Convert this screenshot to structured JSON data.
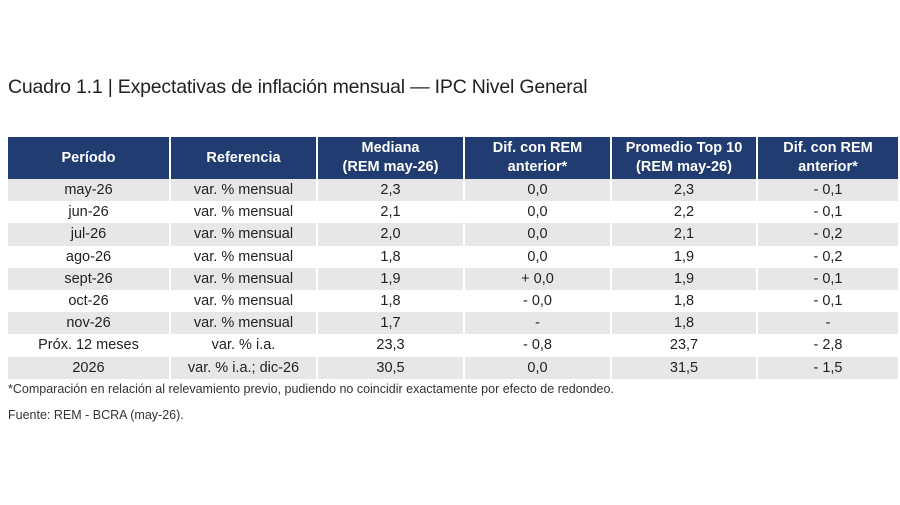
{
  "title": "Cuadro 1.1 | Expectativas de inflación mensual — IPC Nivel General",
  "columns": [
    "Período",
    "Referencia",
    "Mediana\n(REM may-26)",
    "Dif. con REM\nanterior*",
    "Promedio Top 10\n(REM may-26)",
    "Dif. con REM\nanterior*"
  ],
  "rows": [
    [
      "may-26",
      "var. % mensual",
      "2,3",
      "0,0",
      "2,3",
      "- 0,1"
    ],
    [
      "jun-26",
      "var. % mensual",
      "2,1",
      "0,0",
      "2,2",
      "- 0,1"
    ],
    [
      "jul-26",
      "var. % mensual",
      "2,0",
      "0,0",
      "2,1",
      "- 0,2"
    ],
    [
      "ago-26",
      "var. % mensual",
      "1,8",
      "0,0",
      "1,9",
      "- 0,2"
    ],
    [
      "sept-26",
      "var. % mensual",
      "1,9",
      "+ 0,0",
      "1,9",
      "- 0,1"
    ],
    [
      "oct-26",
      "var. % mensual",
      "1,8",
      "- 0,0",
      "1,8",
      "- 0,1"
    ],
    [
      "nov-26",
      "var. % mensual",
      "1,7",
      "-",
      "1,8",
      "-"
    ],
    [
      "Próx. 12 meses",
      "var. % i.a.",
      "23,3",
      "- 0,8",
      "23,7",
      "- 2,8"
    ],
    [
      "2026",
      "var. % i.a.; dic-26",
      "30,5",
      "0,0",
      "31,5",
      "- 1,5"
    ]
  ],
  "footnote": "*Comparación en relación al relevamiento previo, pudiendo no coincidir exactamente por efecto de redondeo.",
  "source": "Fuente: REM - BCRA (may-26).",
  "colors": {
    "header_bg": "#213c70",
    "header_text": "#ffffff",
    "stripe": "#e7e7e7"
  }
}
